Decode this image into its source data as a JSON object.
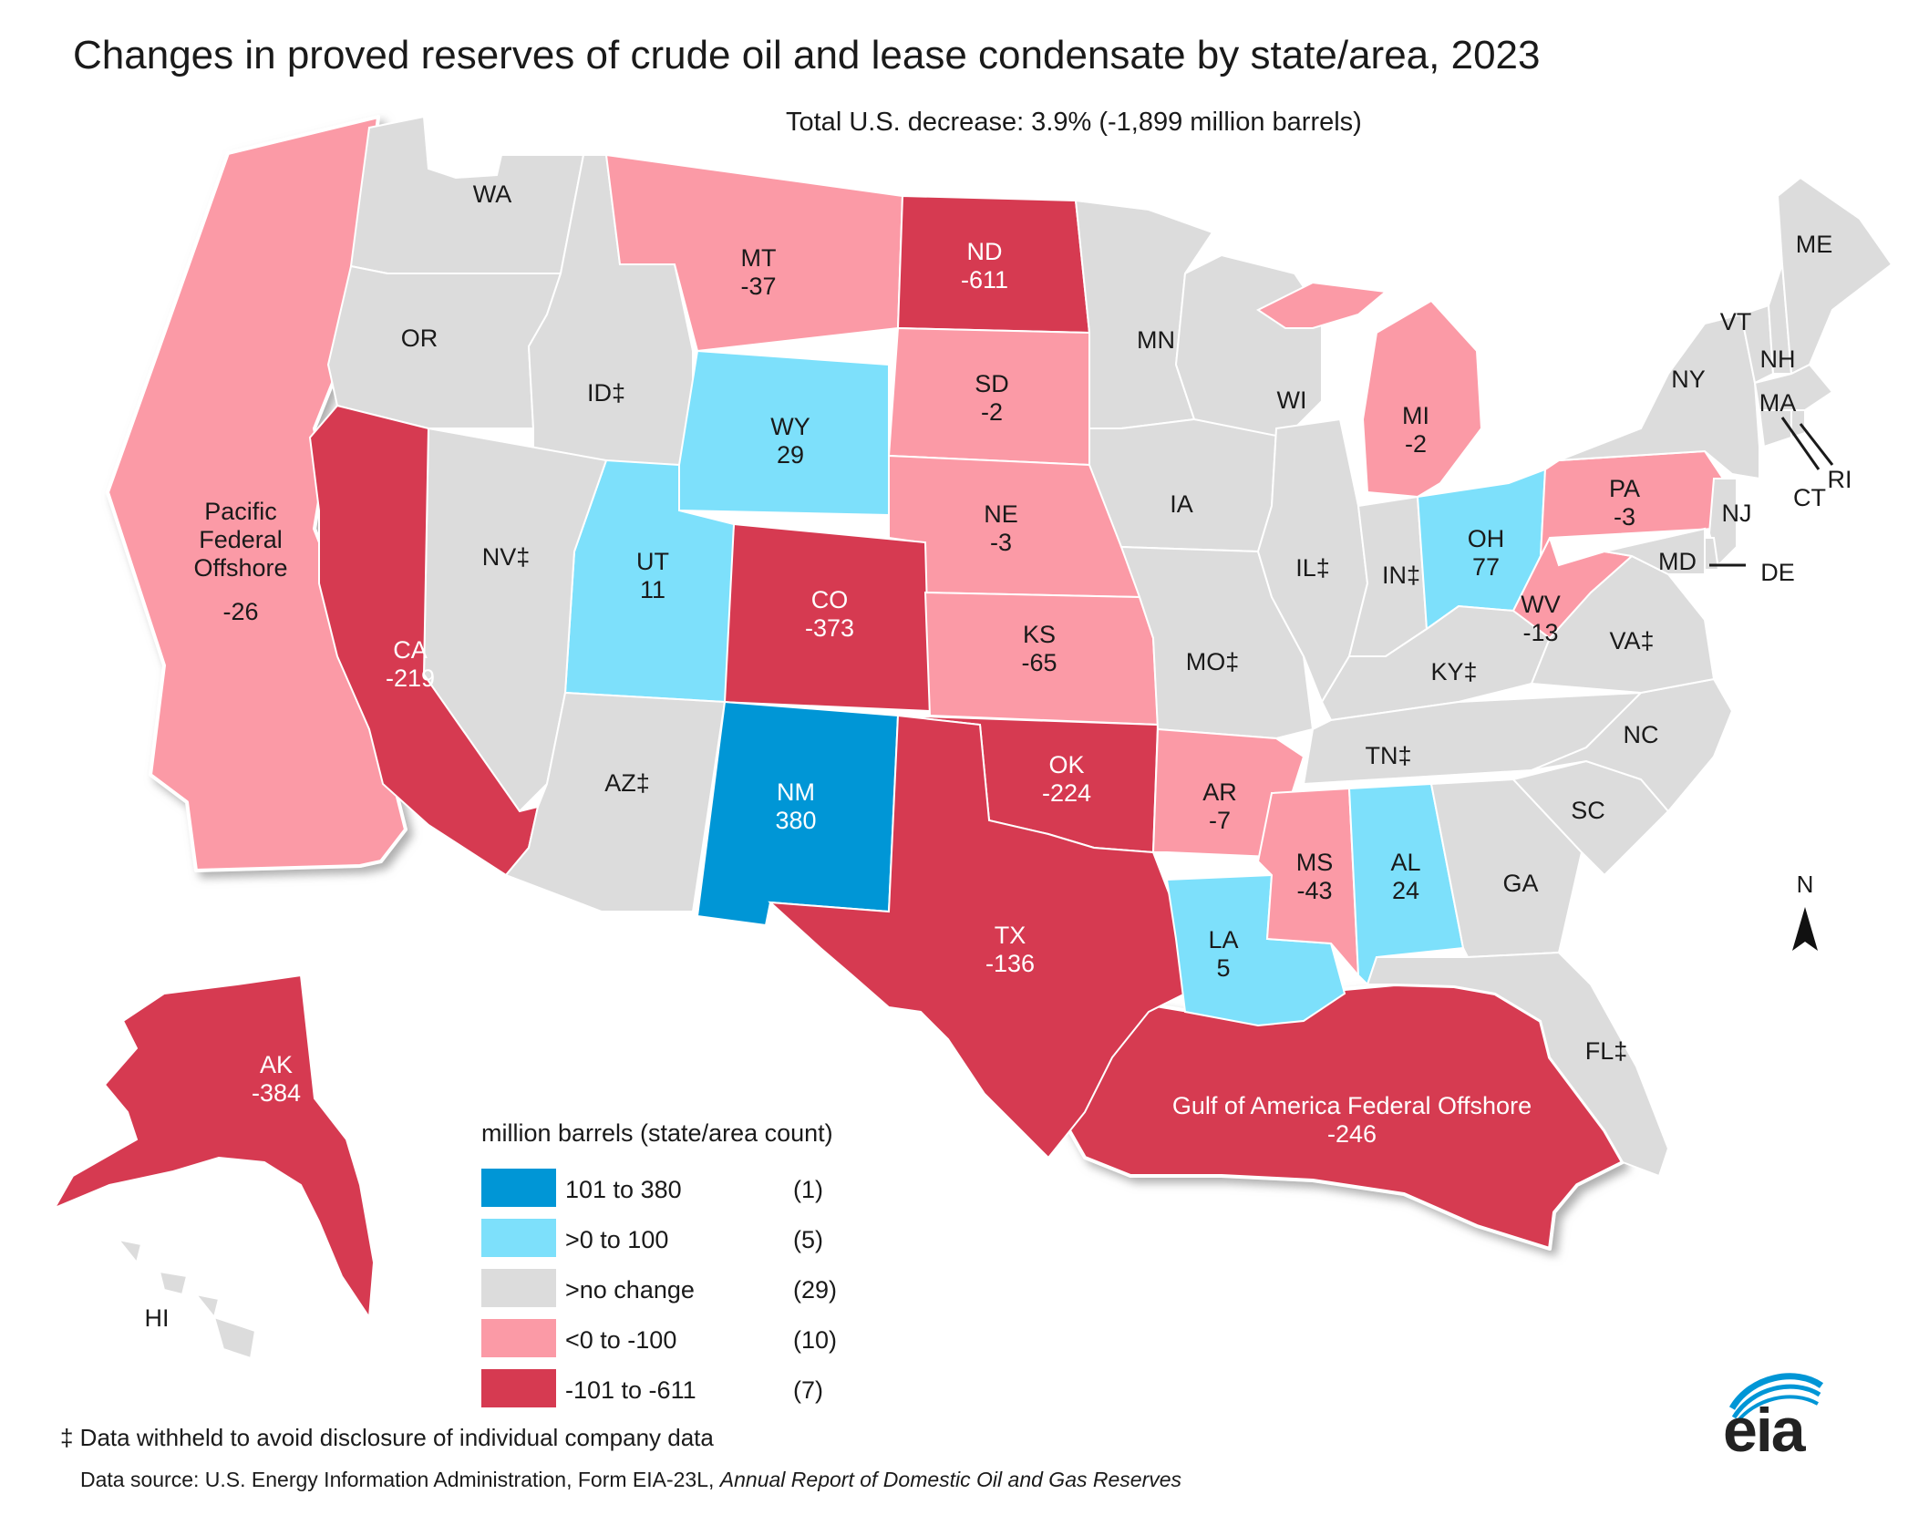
{
  "title": "Changes in proved reserves of crude oil and lease condensate by state/area, 2023",
  "subtitle": "Total U.S. decrease: 3.9% (-1,899 million barrels)",
  "colors": {
    "dark_blue": "#0096d6",
    "light_blue": "#7de0fb",
    "gray": "#dcdcdc",
    "pink": "#fb9aa6",
    "red": "#d63a51"
  },
  "regions": {
    "WA": {
      "name": "WA",
      "value": "",
      "category": "gray"
    },
    "OR": {
      "name": "OR",
      "value": "",
      "category": "gray"
    },
    "ID": {
      "name": "ID‡",
      "value": "",
      "category": "gray"
    },
    "MT": {
      "name": "MT",
      "value": "-37",
      "category": "pink"
    },
    "ND": {
      "name": "ND",
      "value": "-611",
      "category": "red"
    },
    "SD": {
      "name": "SD",
      "value": "-2",
      "category": "pink"
    },
    "WY": {
      "name": "WY",
      "value": "29",
      "category": "light_blue"
    },
    "NE": {
      "name": "NE",
      "value": "-3",
      "category": "pink"
    },
    "CO": {
      "name": "CO",
      "value": "-373",
      "category": "red"
    },
    "KS": {
      "name": "KS",
      "value": "-65",
      "category": "pink"
    },
    "UT": {
      "name": "UT",
      "value": "11",
      "category": "light_blue"
    },
    "NV": {
      "name": "NV‡",
      "value": "",
      "category": "gray"
    },
    "CA": {
      "name": "CA",
      "value": "-219",
      "category": "red"
    },
    "AZ": {
      "name": "AZ‡",
      "value": "",
      "category": "gray"
    },
    "NM": {
      "name": "NM",
      "value": "380",
      "category": "dark_blue"
    },
    "OK": {
      "name": "OK",
      "value": "-224",
      "category": "red"
    },
    "TX": {
      "name": "TX",
      "value": "-136",
      "category": "red"
    },
    "MN": {
      "name": "MN",
      "value": "",
      "category": "gray"
    },
    "IA": {
      "name": "IA",
      "value": "",
      "category": "gray"
    },
    "MO": {
      "name": "MO‡",
      "value": "",
      "category": "gray"
    },
    "AR": {
      "name": "AR",
      "value": "-7",
      "category": "pink"
    },
    "LA": {
      "name": "LA",
      "value": "5",
      "category": "light_blue"
    },
    "WI": {
      "name": "WI",
      "value": "",
      "category": "gray"
    },
    "IL": {
      "name": "IL‡",
      "value": "",
      "category": "gray"
    },
    "IN": {
      "name": "IN‡",
      "value": "",
      "category": "gray"
    },
    "MI": {
      "name": "MI",
      "value": "-2",
      "category": "pink"
    },
    "OH": {
      "name": "OH",
      "value": "77",
      "category": "light_blue"
    },
    "KY": {
      "name": "KY‡",
      "value": "",
      "category": "gray"
    },
    "TN": {
      "name": "TN‡",
      "value": "",
      "category": "gray"
    },
    "MS": {
      "name": "MS",
      "value": "-43",
      "category": "pink"
    },
    "AL": {
      "name": "AL",
      "value": "24",
      "category": "light_blue"
    },
    "GA": {
      "name": "GA",
      "value": "",
      "category": "gray"
    },
    "FL": {
      "name": "FL‡",
      "value": "",
      "category": "gray"
    },
    "SC": {
      "name": "SC",
      "value": "",
      "category": "gray"
    },
    "NC": {
      "name": "NC",
      "value": "",
      "category": "gray"
    },
    "VA": {
      "name": "VA‡",
      "value": "",
      "category": "gray"
    },
    "WV": {
      "name": "WV",
      "value": "-13",
      "category": "pink"
    },
    "PA": {
      "name": "PA",
      "value": "-3",
      "category": "pink"
    },
    "NY": {
      "name": "NY",
      "value": "",
      "category": "gray"
    },
    "VT": {
      "name": "VT",
      "value": "",
      "category": "gray"
    },
    "NH": {
      "name": "NH",
      "value": "",
      "category": "gray"
    },
    "ME": {
      "name": "ME",
      "value": "",
      "category": "gray"
    },
    "MA": {
      "name": "MA",
      "value": "",
      "category": "gray"
    },
    "RI": {
      "name": "RI",
      "value": "",
      "category": "gray"
    },
    "CT": {
      "name": "CT",
      "value": "",
      "category": "gray"
    },
    "NJ": {
      "name": "NJ",
      "value": "",
      "category": "gray"
    },
    "DE": {
      "name": "DE",
      "value": "",
      "category": "gray"
    },
    "MD": {
      "name": "MD",
      "value": "",
      "category": "gray"
    },
    "AK": {
      "name": "AK",
      "value": "-384",
      "category": "red"
    },
    "HI": {
      "name": "HI",
      "value": "",
      "category": "gray"
    },
    "PFO": {
      "name_lines": [
        "Pacific",
        "Federal",
        "Offshore"
      ],
      "value": "-26",
      "category": "pink"
    },
    "GOA": {
      "name": "Gulf of America Federal Offshore",
      "value": "-246",
      "category": "red"
    }
  },
  "legend": {
    "header": "million barrels   (state/area count)",
    "items": [
      {
        "label": "101 to 380",
        "count": "(1)",
        "category": "dark_blue"
      },
      {
        "label": ">0 to 100",
        "count": "(5)",
        "category": "light_blue"
      },
      {
        "label": ">no change",
        "count": "(29)",
        "category": "gray"
      },
      {
        "label": "<0 to -100",
        "count": "(10)",
        "category": "pink"
      },
      {
        "label": "-101 to -611",
        "count": "(7)",
        "category": "red"
      }
    ]
  },
  "footnote": "‡ Data withheld to avoid disclosure of individual company data",
  "source_prefix": "Data source: U.S. Energy Information Administration, Form EIA-23L, ",
  "source_italic": "Annual Report of Domestic Oil and Gas Reserves",
  "north_label": "N",
  "logo_text": "eia"
}
